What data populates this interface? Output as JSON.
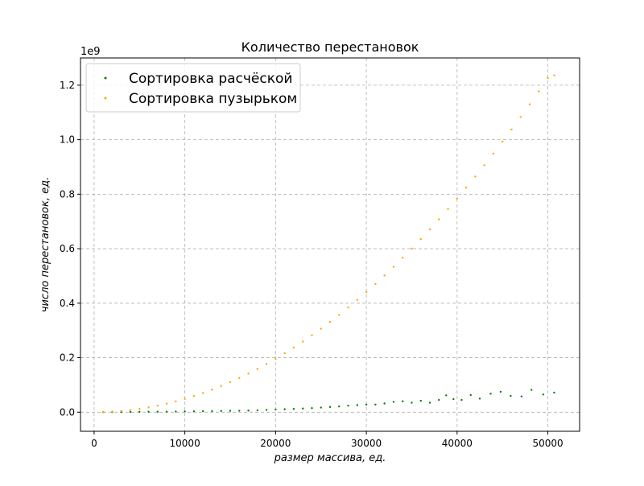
{
  "chart_data": {
    "type": "scatter",
    "title": "Количество перестановок",
    "xlabel": "размер массива, ед.",
    "ylabel": "число перестановок, ед.",
    "y_offset_label": "1e9",
    "xlim": [
      -1500,
      53500
    ],
    "ylim": [
      -0.07,
      1.3
    ],
    "x_ticks": [
      0,
      10000,
      20000,
      30000,
      40000,
      50000
    ],
    "x_tick_labels": [
      "0",
      "10000",
      "20000",
      "30000",
      "40000",
      "50000"
    ],
    "y_ticks": [
      0.0,
      0.2,
      0.4,
      0.6,
      0.8,
      1.0,
      1.2
    ],
    "y_tick_labels": [
      "0.0",
      "0.2",
      "0.4",
      "0.6",
      "0.8",
      "1.0",
      "1.2"
    ],
    "grid": true,
    "legend_position": "top-left",
    "series": [
      {
        "name": "Сортировка расчёской",
        "color": "#008000",
        "points": [
          [
            1000,
            0.0002
          ],
          [
            2000,
            0.0005
          ],
          [
            3000,
            0.0008
          ],
          [
            4000,
            0.0011
          ],
          [
            5000,
            0.0014
          ],
          [
            6000,
            0.0017
          ],
          [
            7000,
            0.002
          ],
          [
            8000,
            0.0023
          ],
          [
            9000,
            0.0026
          ],
          [
            10000,
            0.003
          ],
          [
            11000,
            0.0033
          ],
          [
            12000,
            0.0036
          ],
          [
            13000,
            0.004
          ],
          [
            14000,
            0.0045
          ],
          [
            15000,
            0.005
          ],
          [
            16000,
            0.0055
          ],
          [
            17000,
            0.006
          ],
          [
            18000,
            0.007
          ],
          [
            19000,
            0.0085
          ],
          [
            20000,
            0.01
          ],
          [
            21000,
            0.011
          ],
          [
            22000,
            0.012
          ],
          [
            23000,
            0.0135
          ],
          [
            24000,
            0.015
          ],
          [
            25000,
            0.017
          ],
          [
            26000,
            0.019
          ],
          [
            27000,
            0.021
          ],
          [
            28000,
            0.024
          ],
          [
            29000,
            0.026
          ],
          [
            30000,
            0.028
          ],
          [
            31000,
            0.028
          ],
          [
            32000,
            0.032
          ],
          [
            33000,
            0.038
          ],
          [
            34000,
            0.04
          ],
          [
            35000,
            0.035
          ],
          [
            36000,
            0.042
          ],
          [
            37000,
            0.035
          ],
          [
            38000,
            0.045
          ],
          [
            38800,
            0.062
          ],
          [
            39600,
            0.048
          ],
          [
            40500,
            0.045
          ],
          [
            41500,
            0.063
          ],
          [
            42500,
            0.05
          ],
          [
            43700,
            0.068
          ],
          [
            44800,
            0.075
          ],
          [
            45900,
            0.06
          ],
          [
            47100,
            0.058
          ],
          [
            48200,
            0.082
          ],
          [
            49500,
            0.065
          ],
          [
            50700,
            0.072
          ]
        ]
      },
      {
        "name": "Сортировка пузырьком",
        "color": "#ffa500",
        "points": [
          [
            1000,
            0.0005
          ],
          [
            2000,
            0.002
          ],
          [
            3000,
            0.0044
          ],
          [
            4000,
            0.0078
          ],
          [
            5000,
            0.0122
          ],
          [
            6000,
            0.0176
          ],
          [
            7000,
            0.024
          ],
          [
            8000,
            0.0313
          ],
          [
            9000,
            0.0397
          ],
          [
            10000,
            0.049
          ],
          [
            11000,
            0.0593
          ],
          [
            12000,
            0.0705
          ],
          [
            13000,
            0.0828
          ],
          [
            14000,
            0.096
          ],
          [
            15000,
            0.1103
          ],
          [
            16000,
            0.1254
          ],
          [
            17000,
            0.1416
          ],
          [
            18000,
            0.1588
          ],
          [
            19000,
            0.177
          ],
          [
            20000,
            0.196
          ],
          [
            21000,
            0.2161
          ],
          [
            22000,
            0.2372
          ],
          [
            23000,
            0.2593
          ],
          [
            24000,
            0.2823
          ],
          [
            25000,
            0.3063
          ],
          [
            26000,
            0.3313
          ],
          [
            27000,
            0.3573
          ],
          [
            28000,
            0.3842
          ],
          [
            29000,
            0.4121
          ],
          [
            30000,
            0.441
          ],
          [
            31000,
            0.4709
          ],
          [
            32000,
            0.5018
          ],
          [
            33000,
            0.5337
          ],
          [
            34000,
            0.5665
          ],
          [
            35000,
            0.6003
          ],
          [
            36000,
            0.6351
          ],
          [
            37000,
            0.6709
          ],
          [
            38000,
            0.7077
          ],
          [
            39000,
            0.7455
          ],
          [
            40000,
            0.7843
          ],
          [
            41000,
            0.824
          ],
          [
            42000,
            0.8647
          ],
          [
            43000,
            0.9064
          ],
          [
            44000,
            0.9491
          ],
          [
            45000,
            0.9929
          ],
          [
            46000,
            1.0375
          ],
          [
            47000,
            1.0832
          ],
          [
            48000,
            1.1298
          ],
          [
            49000,
            1.1774
          ],
          [
            50000,
            1.226
          ],
          [
            50700,
            1.236
          ]
        ]
      }
    ]
  }
}
